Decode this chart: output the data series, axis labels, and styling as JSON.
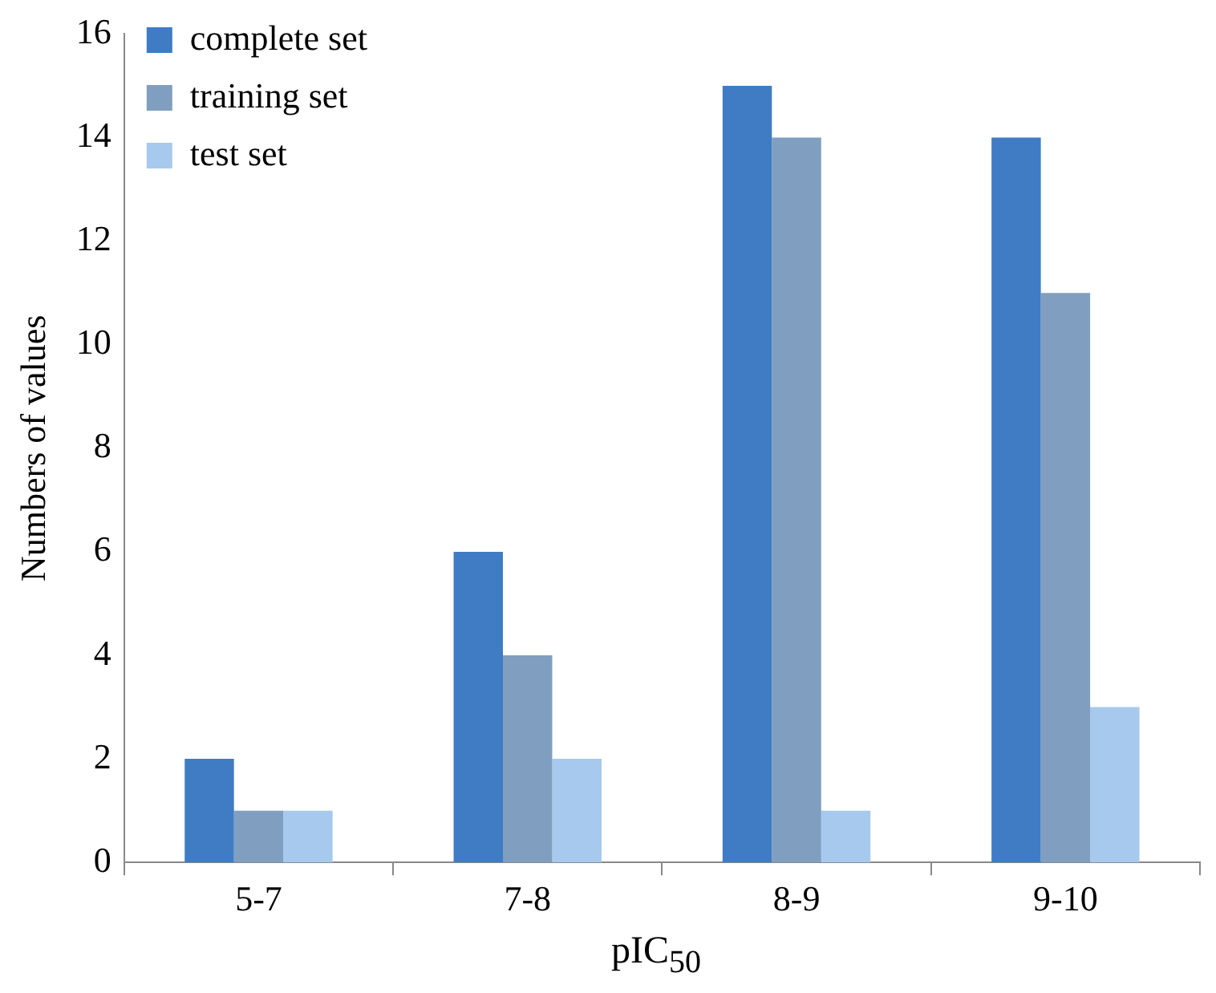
{
  "chart_data": {
    "type": "bar",
    "xlabel": "pIC$_{50}$",
    "ylabel": "Numbers of values",
    "categories": [
      "5-7",
      "7-8",
      "8-9",
      "9-10"
    ],
    "series": [
      {
        "name": "complete set",
        "color": "#3f7cc4",
        "values": [
          2,
          6,
          15,
          14
        ]
      },
      {
        "name": "training set",
        "color": "#809fc0",
        "values": [
          1,
          4,
          14,
          11
        ]
      },
      {
        "name": "test set",
        "color": "#a8c9ee",
        "values": [
          1,
          2,
          1,
          3
        ]
      }
    ],
    "ylim": [
      0,
      16
    ],
    "yticks": [
      0,
      2,
      4,
      6,
      8,
      10,
      12,
      14,
      16
    ],
    "grid": false,
    "legend": "top left"
  }
}
